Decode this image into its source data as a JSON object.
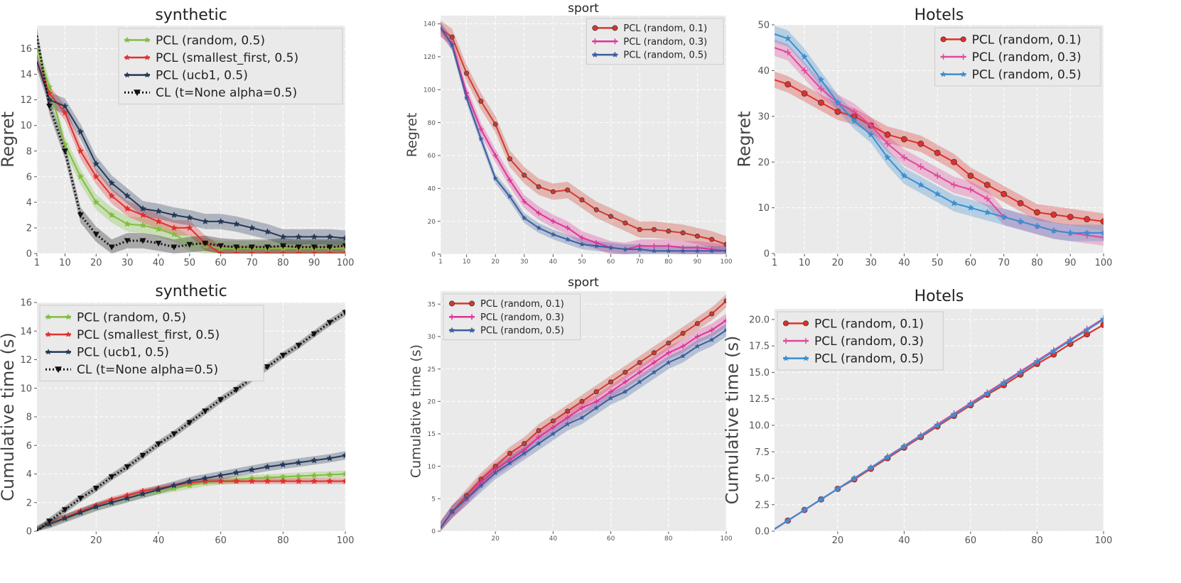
{
  "chart_data": [
    {
      "type": "line",
      "title": "synthetic",
      "xlabel": "",
      "ylabel": "Regret",
      "xlim": [
        1,
        100
      ],
      "ylim": [
        0,
        17.8
      ],
      "grid": true,
      "legend": "top-right",
      "xticks": [
        1,
        10,
        20,
        30,
        40,
        50,
        60,
        70,
        80,
        90,
        100
      ],
      "yticks": [
        0,
        2,
        4,
        6,
        8,
        10,
        12,
        14,
        16
      ],
      "x": [
        1,
        5,
        10,
        15,
        20,
        25,
        30,
        35,
        40,
        45,
        50,
        55,
        60,
        65,
        70,
        75,
        80,
        85,
        90,
        95,
        100
      ],
      "series": [
        {
          "name": "PCL (random, 0.5)",
          "color": "#7fbf3f",
          "marker": "star",
          "dash": "solid",
          "band": 0.6,
          "values": [
            16,
            13,
            8.5,
            6,
            4,
            3,
            2.3,
            2.2,
            1.9,
            1.5,
            0.8,
            0.6,
            0.4,
            0.4,
            0.4,
            0.4,
            0.4,
            0.4,
            0.4,
            0.4,
            0.4
          ]
        },
        {
          "name": "PCL (smallest_first, 0.5)",
          "color": "#e03030",
          "marker": "star",
          "dash": "solid",
          "band": 0.6,
          "values": [
            15,
            12.5,
            11,
            8,
            6,
            4.5,
            3.5,
            3,
            2.5,
            2,
            2,
            0.8,
            0,
            0,
            0,
            0,
            0,
            0,
            0,
            0,
            0
          ]
        },
        {
          "name": "PCL (ucb1, 0.5)",
          "color": "#253858",
          "marker": "star",
          "dash": "solid",
          "band": 0.6,
          "values": [
            15,
            12,
            11.5,
            9.5,
            7,
            5.5,
            4.5,
            3.5,
            3.3,
            3,
            2.8,
            2.5,
            2.5,
            2.3,
            2,
            1.7,
            1.3,
            1.3,
            1.3,
            1.3,
            1.2
          ]
        },
        {
          "name": "CL (t=None alpha=0.5)",
          "color": "#111111",
          "marker": "tri-down",
          "dash": "dotted",
          "band": 0.6,
          "values": [
            17,
            11.5,
            8,
            3,
            1.5,
            0.5,
            1,
            1,
            0.8,
            0.5,
            0.7,
            0.8,
            0.6,
            0.5,
            0.5,
            0.5,
            0.6,
            0.5,
            0.5,
            0.5,
            0.6
          ]
        }
      ]
    },
    {
      "type": "line",
      "title": "sport",
      "xlabel": "",
      "ylabel": "Regret",
      "xlim": [
        1,
        100
      ],
      "ylim": [
        0,
        145
      ],
      "grid": true,
      "legend": "top-right",
      "xticks": [
        1,
        10,
        20,
        30,
        40,
        50,
        60,
        70,
        80,
        90,
        100
      ],
      "yticks": [
        0,
        20,
        40,
        60,
        80,
        100,
        120,
        140
      ],
      "x": [
        1,
        5,
        10,
        15,
        20,
        25,
        30,
        35,
        40,
        45,
        50,
        55,
        60,
        65,
        70,
        75,
        80,
        85,
        90,
        95,
        100
      ],
      "series": [
        {
          "name": "PCL (random, 0.1)",
          "color": "#d03a30",
          "marker": "circle",
          "dash": "solid",
          "band": 5,
          "values": [
            137,
            132,
            110,
            93,
            79,
            58,
            48,
            41,
            38,
            39,
            33,
            27,
            23,
            19,
            15,
            15,
            14,
            13,
            11,
            9,
            6
          ]
        },
        {
          "name": "PCL (random, 0.3)",
          "color": "#dd3497",
          "marker": "plus",
          "dash": "solid",
          "band": 4,
          "values": [
            137,
            128,
            98,
            76,
            60,
            45,
            32,
            25,
            20,
            16,
            10,
            7,
            4,
            3,
            5,
            5,
            5,
            4,
            4,
            3,
            2
          ]
        },
        {
          "name": "PCL (random, 0.5)",
          "color": "#3a5fa0",
          "marker": "star",
          "dash": "solid",
          "band": 3,
          "values": [
            138,
            127,
            95,
            70,
            46,
            35,
            22,
            16,
            12,
            9,
            6,
            5,
            4,
            3,
            3,
            2,
            2,
            2,
            2,
            2,
            2
          ]
        }
      ]
    },
    {
      "type": "line",
      "title": "Hotels",
      "xlabel": "",
      "ylabel": "Regret",
      "xlim": [
        1,
        100
      ],
      "ylim": [
        0,
        50
      ],
      "grid": true,
      "legend": "top-right",
      "xticks": [
        1,
        10,
        20,
        30,
        40,
        50,
        60,
        70,
        80,
        90,
        100
      ],
      "yticks": [
        0,
        10,
        20,
        30,
        40,
        50
      ],
      "x": [
        1,
        5,
        10,
        15,
        20,
        25,
        30,
        35,
        40,
        45,
        50,
        55,
        60,
        65,
        70,
        75,
        80,
        85,
        90,
        95,
        100
      ],
      "series": [
        {
          "name": "PCL (random, 0.1)",
          "color": "#e0302a",
          "marker": "circle",
          "dash": "solid",
          "band": 1.8,
          "values": [
            38,
            37,
            35,
            33,
            31,
            30,
            28,
            26,
            25,
            24,
            22,
            20,
            17,
            15,
            13,
            11,
            9,
            8.5,
            8,
            7.5,
            7
          ]
        },
        {
          "name": "PCL (random, 0.3)",
          "color": "#e0489a",
          "marker": "plus",
          "dash": "solid",
          "band": 1.8,
          "values": [
            45,
            44,
            40,
            36,
            33,
            31,
            28,
            24,
            21,
            19,
            17,
            15,
            14,
            12,
            8,
            7,
            6,
            5,
            4.5,
            4,
            3.5
          ]
        },
        {
          "name": "PCL (random, 0.5)",
          "color": "#3a8fd0",
          "marker": "star",
          "dash": "solid",
          "band": 1.8,
          "values": [
            48,
            47,
            43,
            38,
            33,
            29,
            26,
            21,
            17,
            15,
            13,
            11,
            10,
            9,
            8,
            7,
            6,
            5,
            4.5,
            4.5,
            4.5
          ]
        }
      ]
    },
    {
      "type": "line",
      "title": "synthetic",
      "xlabel": "",
      "ylabel": "Cumulative time (s)",
      "xlim": [
        1,
        100
      ],
      "ylim": [
        0,
        16
      ],
      "grid": true,
      "legend": "top-left",
      "xticks": [
        20,
        40,
        60,
        80,
        100
      ],
      "yticks": [
        0,
        2,
        4,
        6,
        8,
        10,
        12,
        14,
        16
      ],
      "x": [
        1,
        5,
        10,
        15,
        20,
        25,
        30,
        35,
        40,
        45,
        50,
        55,
        60,
        65,
        70,
        75,
        80,
        85,
        90,
        95,
        100
      ],
      "series": [
        {
          "name": "PCL (random, 0.5)",
          "color": "#7fbf3f",
          "marker": "star",
          "dash": "solid",
          "band": 0.25,
          "values": [
            0.1,
            0.5,
            0.9,
            1.3,
            1.7,
            2.0,
            2.3,
            2.6,
            2.8,
            3.0,
            3.2,
            3.4,
            3.5,
            3.6,
            3.7,
            3.75,
            3.8,
            3.85,
            3.9,
            3.95,
            4.0
          ]
        },
        {
          "name": "PCL (smallest_first, 0.5)",
          "color": "#e03030",
          "marker": "star",
          "dash": "solid",
          "band": 0.2,
          "values": [
            0.1,
            0.5,
            0.95,
            1.4,
            1.8,
            2.2,
            2.5,
            2.8,
            3.0,
            3.2,
            3.4,
            3.5,
            3.5,
            3.5,
            3.5,
            3.5,
            3.5,
            3.5,
            3.5,
            3.5,
            3.5
          ]
        },
        {
          "name": "PCL (ucb1, 0.5)",
          "color": "#253858",
          "marker": "star",
          "dash": "solid",
          "band": 0.3,
          "values": [
            0.1,
            0.5,
            0.9,
            1.3,
            1.7,
            2.0,
            2.3,
            2.6,
            2.9,
            3.2,
            3.5,
            3.7,
            3.9,
            4.1,
            4.3,
            4.5,
            4.65,
            4.8,
            4.95,
            5.1,
            5.3
          ]
        },
        {
          "name": "CL (t=None alpha=0.5)",
          "color": "#111111",
          "marker": "tri-down",
          "dash": "dotted",
          "band": 0.25,
          "values": [
            0,
            0.7,
            1.5,
            2.3,
            3.0,
            3.8,
            4.5,
            5.3,
            6.1,
            6.8,
            7.6,
            8.4,
            9.2,
            9.9,
            10.7,
            11.5,
            12.3,
            13.0,
            13.8,
            14.6,
            15.3
          ]
        }
      ]
    },
    {
      "type": "line",
      "title": "sport",
      "xlabel": "",
      "ylabel": "Cumulative time (s)",
      "xlim": [
        1,
        100
      ],
      "ylim": [
        0,
        37
      ],
      "grid": true,
      "legend": "top-left",
      "xticks": [
        20,
        40,
        60,
        80,
        100
      ],
      "yticks": [
        0,
        5,
        10,
        15,
        20,
        25,
        30,
        35
      ],
      "x": [
        1,
        5,
        10,
        15,
        20,
        25,
        30,
        35,
        40,
        45,
        50,
        55,
        60,
        65,
        70,
        75,
        80,
        85,
        90,
        95,
        100
      ],
      "series": [
        {
          "name": "PCL (random, 0.1)",
          "color": "#d03a30",
          "marker": "circle",
          "dash": "solid",
          "band": 1,
          "values": [
            0.5,
            3,
            5.5,
            8,
            10,
            12,
            13.5,
            15.5,
            17,
            18.5,
            20,
            21.5,
            23,
            24.5,
            26,
            27.5,
            29,
            30.5,
            32,
            33.5,
            35.5
          ]
        },
        {
          "name": "PCL (random, 0.3)",
          "color": "#dd3497",
          "marker": "plus",
          "dash": "solid",
          "band": 1,
          "values": [
            0.5,
            3,
            5,
            7.5,
            9.5,
            11,
            12.5,
            14.5,
            16,
            17.5,
            19,
            20,
            21.5,
            23,
            24.5,
            26,
            27.5,
            28.5,
            30,
            31,
            32.5
          ]
        },
        {
          "name": "PCL (random, 0.5)",
          "color": "#3a5fa0",
          "marker": "star",
          "dash": "solid",
          "band": 1,
          "values": [
            0.5,
            3,
            5,
            7,
            9,
            10.5,
            12,
            13.5,
            15,
            16.5,
            17.5,
            19,
            20.5,
            21.5,
            23,
            24.5,
            26,
            27,
            28.5,
            29.5,
            31
          ]
        }
      ]
    },
    {
      "type": "line",
      "title": "Hotels",
      "xlabel": "",
      "ylabel": "Cumulative time (s)",
      "xlim": [
        1,
        100
      ],
      "ylim": [
        0,
        21
      ],
      "grid": true,
      "legend": "top-left",
      "xticks": [
        20,
        40,
        60,
        80,
        100
      ],
      "yticks": [
        0.0,
        2.5,
        5.0,
        7.5,
        10.0,
        12.5,
        15.0,
        17.5,
        20.0
      ],
      "ytick_labels": [
        "0.0",
        "2.5",
        "5.0",
        "7.5",
        "10.0",
        "12.5",
        "15.0",
        "17.5",
        "20.0"
      ],
      "x": [
        1,
        5,
        10,
        15,
        20,
        25,
        30,
        35,
        40,
        45,
        50,
        55,
        60,
        65,
        70,
        75,
        80,
        85,
        90,
        95,
        100
      ],
      "series": [
        {
          "name": "PCL (random, 0.1)",
          "color": "#e0302a",
          "marker": "circle",
          "dash": "solid",
          "band": 0.1,
          "values": [
            0.2,
            1,
            2,
            3,
            4,
            4.9,
            5.9,
            6.9,
            7.9,
            8.9,
            9.9,
            10.9,
            11.9,
            12.9,
            13.8,
            14.8,
            15.8,
            16.7,
            17.7,
            18.6,
            19.5
          ]
        },
        {
          "name": "PCL (random, 0.3)",
          "color": "#e0489a",
          "marker": "plus",
          "dash": "solid",
          "band": 0.1,
          "values": [
            0.2,
            1,
            2,
            3,
            4,
            5,
            6,
            7.05,
            8.05,
            9.05,
            10.1,
            11.1,
            12.1,
            13.1,
            14.1,
            15.1,
            16.1,
            17.1,
            18.1,
            19.1,
            20.1
          ]
        },
        {
          "name": "PCL (random, 0.5)",
          "color": "#3a8fd0",
          "marker": "star",
          "dash": "solid",
          "band": 0.1,
          "values": [
            0.2,
            1,
            2,
            3,
            4,
            5,
            6,
            7,
            8,
            9,
            10,
            11,
            12,
            13,
            14,
            15,
            16,
            17,
            18,
            19,
            20
          ]
        }
      ]
    }
  ]
}
